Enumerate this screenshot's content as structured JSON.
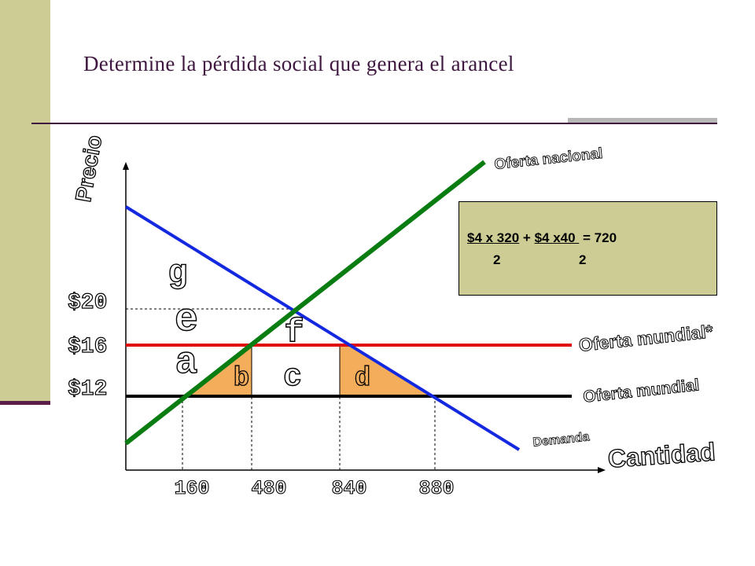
{
  "title": "Determine la pérdida social que genera el arancel",
  "axis_labels": {
    "y": "Precio",
    "x": "Cantidad"
  },
  "curve_labels": {
    "oferta_nacional": "Oferta nacional",
    "oferta_mundial_tariff": "Oferta mundial*",
    "oferta_mundial": "Oferta mundial",
    "demanda": "Demanda"
  },
  "price_ticks": [
    "$20",
    "$16",
    "$12"
  ],
  "quantity_ticks": [
    "160",
    "480",
    "840",
    "880"
  ],
  "area_letters": {
    "g": "g",
    "e": "e",
    "a": "a",
    "f": "f",
    "b": "b",
    "c": "c",
    "d": "d"
  },
  "formula": {
    "line1_part1": "$4 x 320",
    "line1_plus": " + ",
    "line1_part2": "$4 x40 ",
    "line1_result": " = 720",
    "line2_den1": "2",
    "line2_den2": "2"
  },
  "colors": {
    "sidebar": "#cdcc94",
    "title": "#3f1740",
    "supply": "#0a7d12",
    "demand": "#1428e0",
    "tariff_line": "#e01010",
    "world_line": "#000000",
    "deadweight_fill": "#f4ad5a"
  }
}
